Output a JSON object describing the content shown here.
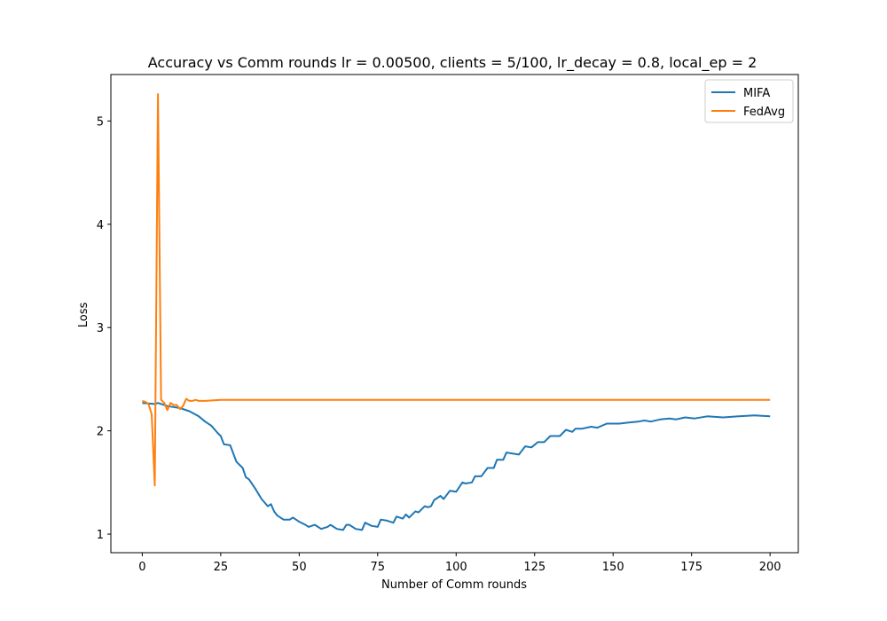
{
  "chart_data": {
    "type": "line",
    "title": "Accuracy vs Comm rounds lr = 0.00500, clients = 5/100, lr_decay = 0.8, local_ep = 2",
    "xlabel": "Number of Comm rounds",
    "ylabel": "Loss",
    "xlim": [
      -10,
      209
    ],
    "ylim": [
      0.82,
      5.45
    ],
    "xticks": [
      0,
      25,
      50,
      75,
      100,
      125,
      150,
      175,
      200
    ],
    "yticks": [
      1,
      2,
      3,
      4,
      5
    ],
    "grid": false,
    "legend": "top-right",
    "series": [
      {
        "name": "MIFA",
        "color": "#1f77b4",
        "points": [
          [
            0,
            2.27
          ],
          [
            4,
            2.26
          ],
          [
            5,
            2.27
          ],
          [
            8,
            2.24
          ],
          [
            12,
            2.22
          ],
          [
            15,
            2.19
          ],
          [
            18,
            2.14
          ],
          [
            20,
            2.09
          ],
          [
            22,
            2.05
          ],
          [
            24,
            1.98
          ],
          [
            25,
            1.95
          ],
          [
            26,
            1.87
          ],
          [
            28,
            1.86
          ],
          [
            30,
            1.7
          ],
          [
            32,
            1.64
          ],
          [
            33,
            1.55
          ],
          [
            34,
            1.53
          ],
          [
            36,
            1.44
          ],
          [
            38,
            1.34
          ],
          [
            40,
            1.27
          ],
          [
            41,
            1.29
          ],
          [
            42,
            1.22
          ],
          [
            43,
            1.18
          ],
          [
            45,
            1.14
          ],
          [
            47,
            1.14
          ],
          [
            48,
            1.16
          ],
          [
            50,
            1.12
          ],
          [
            52,
            1.09
          ],
          [
            53,
            1.07
          ],
          [
            55,
            1.09
          ],
          [
            57,
            1.05
          ],
          [
            59,
            1.07
          ],
          [
            60,
            1.09
          ],
          [
            62,
            1.05
          ],
          [
            64,
            1.04
          ],
          [
            65,
            1.09
          ],
          [
            66,
            1.09
          ],
          [
            68,
            1.05
          ],
          [
            70,
            1.04
          ],
          [
            71,
            1.11
          ],
          [
            73,
            1.08
          ],
          [
            75,
            1.07
          ],
          [
            76,
            1.14
          ],
          [
            78,
            1.13
          ],
          [
            80,
            1.11
          ],
          [
            81,
            1.17
          ],
          [
            83,
            1.15
          ],
          [
            84,
            1.19
          ],
          [
            85,
            1.16
          ],
          [
            87,
            1.22
          ],
          [
            88,
            1.21
          ],
          [
            90,
            1.27
          ],
          [
            91,
            1.26
          ],
          [
            92,
            1.27
          ],
          [
            93,
            1.33
          ],
          [
            95,
            1.37
          ],
          [
            96,
            1.34
          ],
          [
            98,
            1.42
          ],
          [
            100,
            1.41
          ],
          [
            102,
            1.5
          ],
          [
            103,
            1.49
          ],
          [
            105,
            1.5
          ],
          [
            106,
            1.56
          ],
          [
            108,
            1.56
          ],
          [
            110,
            1.64
          ],
          [
            112,
            1.64
          ],
          [
            113,
            1.72
          ],
          [
            115,
            1.72
          ],
          [
            116,
            1.79
          ],
          [
            118,
            1.78
          ],
          [
            120,
            1.77
          ],
          [
            122,
            1.85
          ],
          [
            124,
            1.84
          ],
          [
            126,
            1.89
          ],
          [
            128,
            1.89
          ],
          [
            130,
            1.95
          ],
          [
            133,
            1.95
          ],
          [
            135,
            2.01
          ],
          [
            137,
            1.99
          ],
          [
            138,
            2.02
          ],
          [
            140,
            2.02
          ],
          [
            143,
            2.04
          ],
          [
            145,
            2.03
          ],
          [
            148,
            2.07
          ],
          [
            152,
            2.07
          ],
          [
            155,
            2.08
          ],
          [
            158,
            2.09
          ],
          [
            160,
            2.1
          ],
          [
            162,
            2.09
          ],
          [
            165,
            2.11
          ],
          [
            168,
            2.12
          ],
          [
            170,
            2.11
          ],
          [
            173,
            2.13
          ],
          [
            176,
            2.12
          ],
          [
            180,
            2.14
          ],
          [
            185,
            2.13
          ],
          [
            190,
            2.14
          ],
          [
            195,
            2.15
          ],
          [
            200,
            2.14
          ]
        ]
      },
      {
        "name": "FedAvg",
        "color": "#ff7f0e",
        "points": [
          [
            0,
            2.29
          ],
          [
            1,
            2.28
          ],
          [
            2,
            2.26
          ],
          [
            3,
            2.16
          ],
          [
            4,
            1.47
          ],
          [
            5,
            5.26
          ],
          [
            6,
            2.3
          ],
          [
            7,
            2.27
          ],
          [
            8,
            2.2
          ],
          [
            9,
            2.27
          ],
          [
            10,
            2.25
          ],
          [
            11,
            2.25
          ],
          [
            12,
            2.21
          ],
          [
            13,
            2.24
          ],
          [
            14,
            2.31
          ],
          [
            15,
            2.29
          ],
          [
            16,
            2.29
          ],
          [
            17,
            2.3
          ],
          [
            18,
            2.29
          ],
          [
            20,
            2.29
          ],
          [
            25,
            2.3
          ],
          [
            30,
            2.3
          ],
          [
            40,
            2.3
          ],
          [
            50,
            2.3
          ],
          [
            75,
            2.3
          ],
          [
            100,
            2.3
          ],
          [
            125,
            2.3
          ],
          [
            150,
            2.3
          ],
          [
            175,
            2.3
          ],
          [
            200,
            2.3
          ]
        ]
      }
    ]
  }
}
